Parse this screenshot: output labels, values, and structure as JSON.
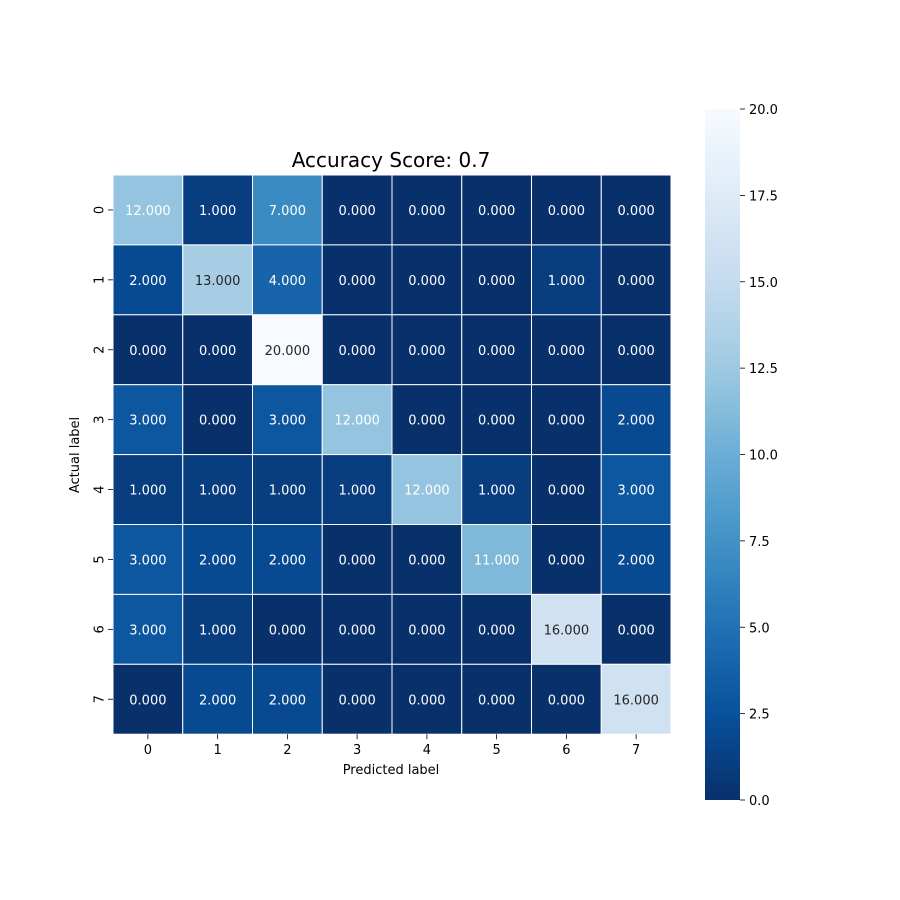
{
  "chart_data": {
    "type": "heatmap",
    "title": "Accuracy Score: 0.7",
    "xlabel": "Predicted label",
    "ylabel": "Actual label",
    "x_categories": [
      "0",
      "1",
      "2",
      "3",
      "4",
      "5",
      "6",
      "7"
    ],
    "y_categories": [
      "0",
      "1",
      "2",
      "3",
      "4",
      "5",
      "6",
      "7"
    ],
    "values": [
      [
        12,
        1,
        7,
        0,
        0,
        0,
        0,
        0
      ],
      [
        2,
        13,
        4,
        0,
        0,
        0,
        1,
        0
      ],
      [
        0,
        0,
        20,
        0,
        0,
        0,
        0,
        0
      ],
      [
        3,
        0,
        3,
        12,
        0,
        0,
        0,
        2
      ],
      [
        1,
        1,
        1,
        1,
        12,
        1,
        0,
        3
      ],
      [
        3,
        2,
        2,
        0,
        0,
        11,
        0,
        2
      ],
      [
        3,
        1,
        0,
        0,
        0,
        0,
        16,
        0
      ],
      [
        0,
        2,
        2,
        0,
        0,
        0,
        0,
        16
      ]
    ],
    "value_format_decimals": 3,
    "colormap": "Blues_r",
    "colorbar": {
      "min": 0,
      "max": 20,
      "ticks": [
        "0.0",
        "2.5",
        "5.0",
        "7.5",
        "10.0",
        "12.5",
        "15.0",
        "17.5",
        "20.0"
      ]
    },
    "grid": true,
    "grid_color": "#ffffff"
  }
}
